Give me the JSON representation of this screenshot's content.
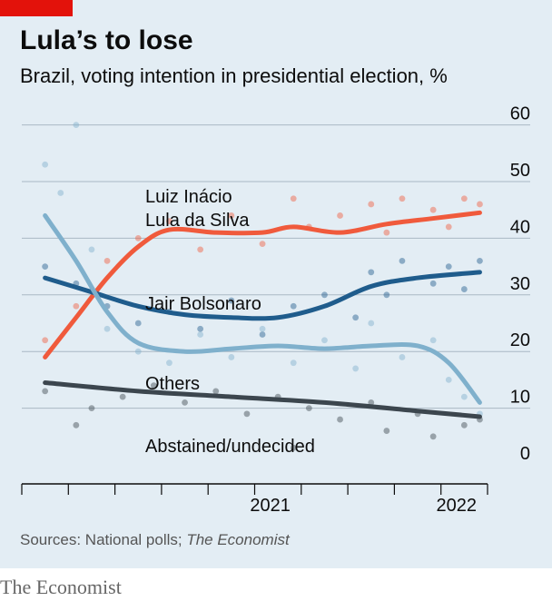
{
  "header": {
    "title": "Lula’s to lose",
    "subtitle": "Brazil, voting intention in presidential election, %"
  },
  "footer": {
    "source_prefix": "Sources: National polls; ",
    "source_italic": "The Economist",
    "brand": "The Economist"
  },
  "colors": {
    "background": "#e3edf4",
    "brand_red": "#e3120b",
    "lula": "#f05a3c",
    "bolsonaro": "#1f5c8c",
    "others": "#7fb0cc",
    "abstained": "#3c464e",
    "grid": "#aab8c4"
  },
  "chart_data": {
    "type": "line",
    "title": "Lula’s to lose",
    "subtitle": "Brazil, voting intention in presidential election, %",
    "xlabel": "",
    "ylabel": "",
    "x_axis": {
      "type": "date",
      "range": [
        "2020-03",
        "2022-08"
      ],
      "tick_labels": [
        "2021",
        "2022"
      ]
    },
    "ylim": [
      0,
      60
    ],
    "y_ticks": [
      0,
      10,
      20,
      30,
      40,
      50,
      60
    ],
    "y_axis_side": "right",
    "grid": true,
    "legend": "direct labels",
    "series": [
      {
        "name": "Luiz Inácio Lula da Silva",
        "label_lines": [
          "Luiz Inácio",
          "Lula da Silva"
        ],
        "color_key": "lula",
        "trend": [
          [
            "2020-04",
            19
          ],
          [
            "2020-06",
            26
          ],
          [
            "2020-08",
            33
          ],
          [
            "2020-10",
            38.5
          ],
          [
            "2020-12",
            41.5
          ],
          [
            "2021-03",
            41
          ],
          [
            "2021-06",
            41
          ],
          [
            "2021-08",
            42
          ],
          [
            "2021-11",
            41
          ],
          [
            "2022-02",
            42.5
          ],
          [
            "2022-05",
            43.5
          ],
          [
            "2022-08",
            44.5
          ]
        ],
        "polls": [
          [
            "2020-04",
            22
          ],
          [
            "2020-06",
            28
          ],
          [
            "2020-08",
            36
          ],
          [
            "2020-10",
            40
          ],
          [
            "2020-12",
            43
          ],
          [
            "2021-02",
            38
          ],
          [
            "2021-04",
            44
          ],
          [
            "2021-06",
            39
          ],
          [
            "2021-08",
            47
          ],
          [
            "2021-09",
            42
          ],
          [
            "2021-11",
            44
          ],
          [
            "2022-01",
            46
          ],
          [
            "2022-02",
            41
          ],
          [
            "2022-03",
            47
          ],
          [
            "2022-05",
            45
          ],
          [
            "2022-06",
            42
          ],
          [
            "2022-07",
            47
          ],
          [
            "2022-08",
            46
          ]
        ]
      },
      {
        "name": "Jair Bolsonaro",
        "label_lines": [
          "Jair Bolsonaro"
        ],
        "color_key": "bolsonaro",
        "trend": [
          [
            "2020-04",
            33
          ],
          [
            "2020-07",
            30.5
          ],
          [
            "2020-10",
            28
          ],
          [
            "2021-01",
            26.5
          ],
          [
            "2021-04",
            26
          ],
          [
            "2021-07",
            26
          ],
          [
            "2021-10",
            28
          ],
          [
            "2022-01",
            31.5
          ],
          [
            "2022-04",
            33
          ],
          [
            "2022-08",
            34
          ]
        ],
        "polls": [
          [
            "2020-04",
            35
          ],
          [
            "2020-06",
            32
          ],
          [
            "2020-08",
            28
          ],
          [
            "2020-10",
            25
          ],
          [
            "2020-12",
            27
          ],
          [
            "2021-02",
            24
          ],
          [
            "2021-04",
            29
          ],
          [
            "2021-06",
            23
          ],
          [
            "2021-08",
            28
          ],
          [
            "2021-10",
            30
          ],
          [
            "2021-12",
            26
          ],
          [
            "2022-01",
            34
          ],
          [
            "2022-02",
            30
          ],
          [
            "2022-03",
            36
          ],
          [
            "2022-05",
            32
          ],
          [
            "2022-06",
            35
          ],
          [
            "2022-07",
            31
          ],
          [
            "2022-08",
            36
          ]
        ]
      },
      {
        "name": "Others",
        "label_lines": [
          "Others"
        ],
        "color_key": "others",
        "trend": [
          [
            "2020-04",
            44
          ],
          [
            "2020-06",
            36
          ],
          [
            "2020-08",
            27
          ],
          [
            "2020-10",
            21.5
          ],
          [
            "2021-01",
            20
          ],
          [
            "2021-04",
            20.5
          ],
          [
            "2021-07",
            21
          ],
          [
            "2021-10",
            20.5
          ],
          [
            "2022-01",
            21
          ],
          [
            "2022-04",
            21
          ],
          [
            "2022-06",
            18
          ],
          [
            "2022-08",
            11
          ]
        ],
        "polls": [
          [
            "2020-04",
            53
          ],
          [
            "2020-05",
            48
          ],
          [
            "2020-06",
            60
          ],
          [
            "2020-07",
            38
          ],
          [
            "2020-08",
            24
          ],
          [
            "2020-10",
            20
          ],
          [
            "2020-12",
            18
          ],
          [
            "2021-02",
            23
          ],
          [
            "2021-04",
            19
          ],
          [
            "2021-06",
            24
          ],
          [
            "2021-08",
            18
          ],
          [
            "2021-10",
            22
          ],
          [
            "2021-12",
            17
          ],
          [
            "2022-01",
            25
          ],
          [
            "2022-03",
            19
          ],
          [
            "2022-05",
            22
          ],
          [
            "2022-06",
            15
          ],
          [
            "2022-07",
            12
          ],
          [
            "2022-08",
            9
          ]
        ]
      },
      {
        "name": "Abstained/undecided",
        "label_lines": [
          "Abstained/undecided"
        ],
        "color_key": "abstained",
        "trend": [
          [
            "2020-04",
            14.5
          ],
          [
            "2020-10",
            13
          ],
          [
            "2021-04",
            12
          ],
          [
            "2021-10",
            11
          ],
          [
            "2022-04",
            9.5
          ],
          [
            "2022-08",
            8.5
          ]
        ],
        "polls": [
          [
            "2020-04",
            13
          ],
          [
            "2020-06",
            7
          ],
          [
            "2020-07",
            10
          ],
          [
            "2020-09",
            12
          ],
          [
            "2020-11",
            14
          ],
          [
            "2021-01",
            11
          ],
          [
            "2021-03",
            13
          ],
          [
            "2021-05",
            9
          ],
          [
            "2021-07",
            12
          ],
          [
            "2021-08",
            3
          ],
          [
            "2021-09",
            10
          ],
          [
            "2021-11",
            8
          ],
          [
            "2022-01",
            11
          ],
          [
            "2022-02",
            6
          ],
          [
            "2022-04",
            9
          ],
          [
            "2022-05",
            5
          ],
          [
            "2022-07",
            7
          ],
          [
            "2022-08",
            8
          ]
        ]
      }
    ]
  }
}
